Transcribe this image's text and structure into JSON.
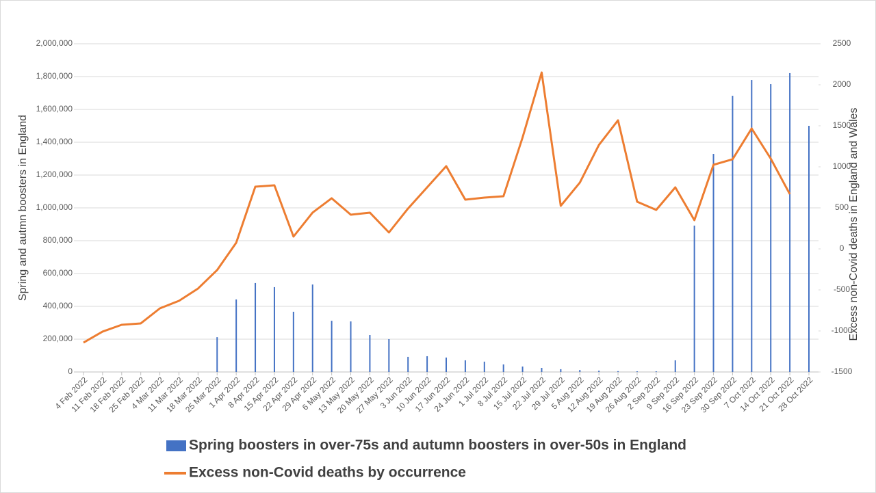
{
  "chart_data": {
    "type": "combo",
    "y_label": "Spring and autmn boosters in England",
    "y2_label": "Excess non-Covid deaths in England and Wales",
    "categories": [
      "4 Feb 2022",
      "11 Feb 2022",
      "18 Feb 2022",
      "25 Feb 2022",
      "4 Mar 2022",
      "11 Mar 2022",
      "18 Mar 2022",
      "25 Mar 2022",
      "1 Apr 2022",
      "8 Apr 2022",
      "15 Apr 2022",
      "22 Apr 2022",
      "29 Apr 2022",
      "6 May 2022",
      "13 May 2022",
      "20 May 2022",
      "27 May 2022",
      "3 Jun 2022",
      "10 Jun 2022",
      "17 Jun 2022",
      "24 Jun 2022",
      "1 Jul 2022",
      "8 Jul 2022",
      "15 Jul 2022",
      "22 Jul 2022",
      "29 Jul 2022",
      "5 Aug 2022",
      "12 Aug 2022",
      "19 Aug 2022",
      "26 Aug 2022",
      "2 Sep 2022",
      "9 Sep 2022",
      "16 Sep 2022",
      "23 Sep 2022",
      "30 Sep 2022",
      "7 Oct 2022",
      "14 Oct 2022",
      "21 Oct 2022",
      "28 Oct 2022"
    ],
    "series": [
      {
        "name": "Spring boosters in over-75s and autumn boosters in over-50s in England",
        "color": "#4472c4",
        "type": "bar",
        "values": [
          0,
          0,
          0,
          0,
          0,
          0,
          0,
          212000,
          442000,
          542000,
          517000,
          367000,
          533000,
          312000,
          308000,
          225000,
          200000,
          92000,
          96000,
          88000,
          71000,
          63000,
          46000,
          33000,
          25000,
          17000,
          12000,
          8000,
          5000,
          4000,
          4000,
          71000,
          892000,
          1329000,
          1683000,
          1779000,
          1754000,
          1821000,
          1500000
        ]
      },
      {
        "name": "Excess non-Covid deaths by occurrence",
        "color": "#ed7d31",
        "type": "line",
        "axis": "y2",
        "values": [
          -1142,
          -1008,
          -925,
          -908,
          -725,
          -633,
          -483,
          -258,
          75,
          758,
          775,
          150,
          442,
          617,
          417,
          442,
          200,
          492,
          750,
          1008,
          600,
          625,
          642,
          1358,
          2150,
          525,
          808,
          1267,
          1567,
          575,
          475,
          750,
          350,
          1025,
          1092,
          1467,
          1100,
          667,
          null
        ]
      }
    ],
    "ylim": [
      0,
      2000000
    ],
    "yticks": [
      {
        "value": 0,
        "label": "0"
      },
      {
        "value": 200000,
        "label": "200,000"
      },
      {
        "value": 400000,
        "label": "400,000"
      },
      {
        "value": 600000,
        "label": "600,000"
      },
      {
        "value": 800000,
        "label": "800,000"
      },
      {
        "value": 1000000,
        "label": "1,000,000"
      },
      {
        "value": 1200000,
        "label": "1,200,000"
      },
      {
        "value": 1400000,
        "label": "1,400,000"
      },
      {
        "value": 1600000,
        "label": "1,600,000"
      },
      {
        "value": 1800000,
        "label": "1,800,000"
      },
      {
        "value": 2000000,
        "label": "2,000,000"
      }
    ],
    "y2lim": [
      -1500,
      2500
    ],
    "y2ticks": [
      -1500,
      -1000,
      -500,
      0,
      500,
      1000,
      1500,
      2000,
      2500
    ],
    "grid": true,
    "legend": "bottom"
  }
}
